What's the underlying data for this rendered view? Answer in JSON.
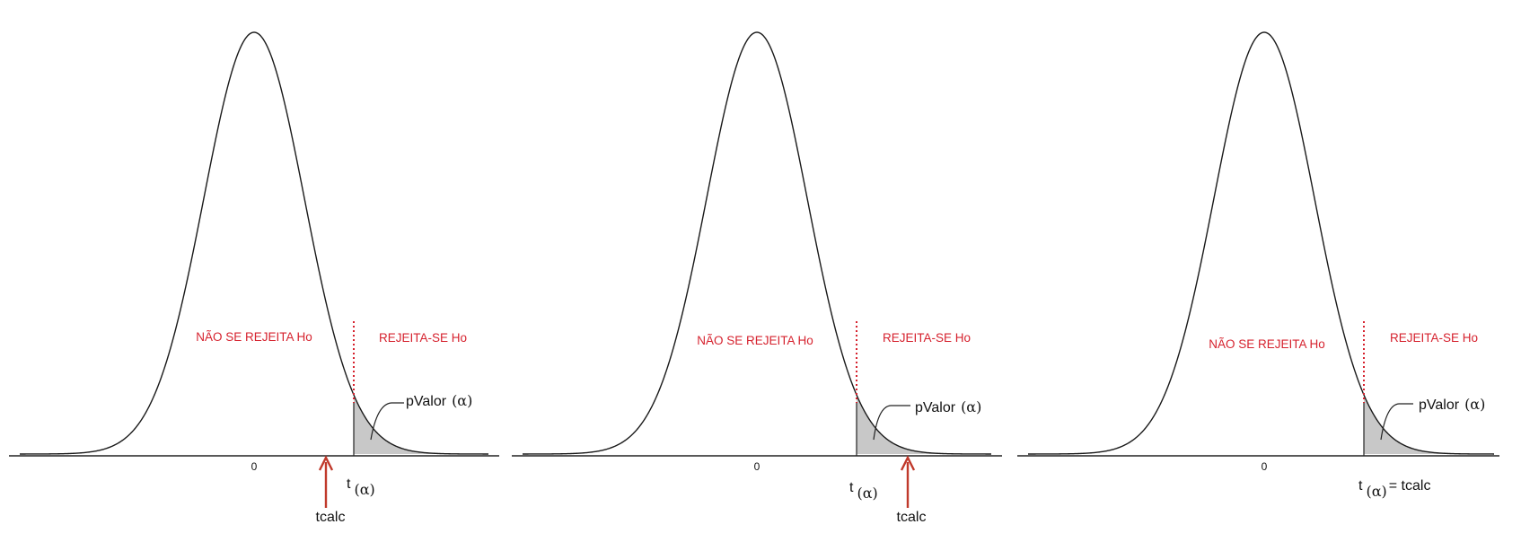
{
  "colors": {
    "accent": "#d6222e",
    "curve": "#1a1a1a",
    "shade": "#c8c8c8",
    "axis": "#222222",
    "text": "#111111"
  },
  "panels": [
    {
      "zero_label": "0",
      "accept_label": "NÃO SE REJEITA Ho",
      "reject_label": "REJEITA-SE Ho",
      "pvalue_label": "pValor",
      "alpha_symbol": "(α)",
      "t_label": "t",
      "t_sub": "(α)",
      "t_suffix": "",
      "tcalc_label": "tcalc",
      "tcalc_position": "left-of-critical"
    },
    {
      "zero_label": "0",
      "accept_label": "NÃO SE REJEITA Ho",
      "reject_label": "REJEITA-SE Ho",
      "pvalue_label": "pValor",
      "alpha_symbol": "(α)",
      "t_label": "t",
      "t_sub": "(α)",
      "t_suffix": "",
      "tcalc_label": "tcalc",
      "tcalc_position": "right-of-critical"
    },
    {
      "zero_label": "0",
      "accept_label": "NÃO SE REJEITA Ho",
      "reject_label": "REJEITA-SE Ho",
      "pvalue_label": "pValor",
      "alpha_symbol": "(α)",
      "t_label": "t",
      "t_sub": "(α)",
      "t_suffix": "=  tcalc",
      "tcalc_label": "",
      "tcalc_position": "at-critical"
    }
  ]
}
